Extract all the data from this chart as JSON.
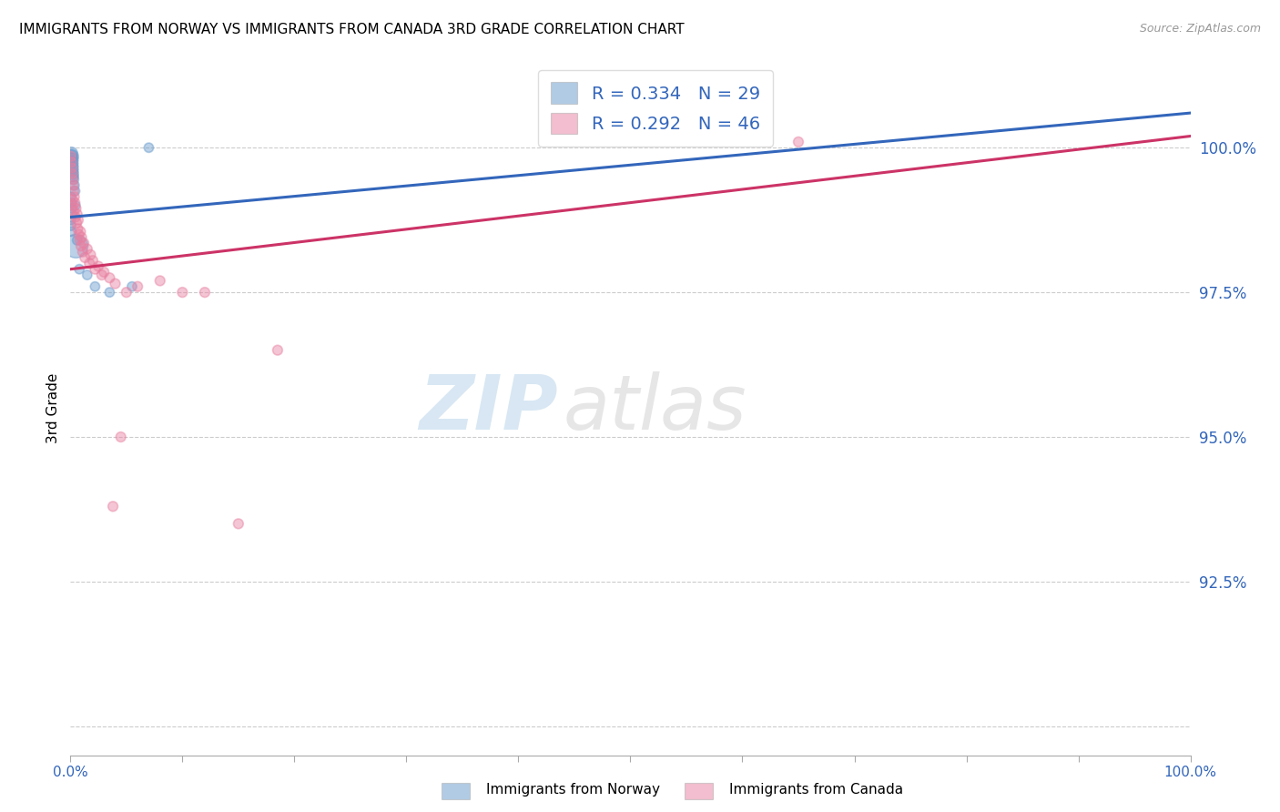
{
  "title": "IMMIGRANTS FROM NORWAY VS IMMIGRANTS FROM CANADA 3RD GRADE CORRELATION CHART",
  "source": "Source: ZipAtlas.com",
  "ylabel": "3rd Grade",
  "xlim": [
    0.0,
    100.0
  ],
  "ylim": [
    89.5,
    101.5
  ],
  "norway_color": "#6699cc",
  "canada_color": "#e87fa0",
  "norway_R": "0.334",
  "norway_N": "29",
  "canada_R": "0.292",
  "canada_N": "46",
  "norway_label": "Immigrants from Norway",
  "canada_label": "Immigrants from Canada",
  "ytick_positions": [
    90.0,
    92.5,
    95.0,
    97.5,
    100.0
  ],
  "ytick_labels": [
    "",
    "92.5%",
    "95.0%",
    "97.5%",
    "100.0%"
  ],
  "norway_x": [
    0.05,
    0.08,
    0.1,
    0.12,
    0.15,
    0.18,
    0.2,
    0.22,
    0.25,
    0.28,
    0.3,
    0.35,
    0.4,
    0.06,
    0.09,
    0.13,
    0.16,
    0.04,
    0.07,
    0.1,
    0.5,
    0.8,
    1.5,
    2.2,
    3.5,
    5.5,
    7.0,
    0.45,
    0.6
  ],
  "norway_y": [
    99.85,
    99.9,
    99.85,
    99.8,
    99.75,
    99.7,
    99.65,
    99.6,
    99.55,
    99.5,
    99.45,
    99.35,
    99.25,
    99.15,
    99.05,
    98.95,
    98.85,
    98.75,
    98.65,
    98.55,
    98.3,
    97.9,
    97.8,
    97.6,
    97.5,
    97.6,
    100.0,
    99.0,
    98.4
  ],
  "norway_size": [
    100,
    100,
    120,
    100,
    90,
    80,
    80,
    70,
    70,
    60,
    60,
    60,
    60,
    55,
    55,
    55,
    55,
    55,
    55,
    55,
    350,
    55,
    55,
    55,
    55,
    55,
    55,
    55,
    55
  ],
  "canada_x": [
    0.05,
    0.08,
    0.12,
    0.15,
    0.2,
    0.25,
    0.3,
    0.35,
    0.4,
    0.5,
    0.6,
    0.7,
    0.9,
    1.0,
    1.2,
    1.5,
    1.8,
    2.0,
    2.5,
    3.0,
    3.5,
    4.0,
    0.18,
    0.22,
    0.28,
    0.45,
    0.55,
    0.65,
    0.75,
    0.85,
    0.95,
    1.1,
    1.3,
    1.7,
    2.2,
    2.8,
    5.0,
    6.0,
    8.0,
    10.0,
    12.0,
    15.0,
    3.8,
    4.5,
    18.5,
    65.0
  ],
  "canada_y": [
    99.85,
    99.75,
    99.65,
    99.55,
    99.45,
    99.35,
    99.25,
    99.15,
    99.05,
    98.95,
    98.85,
    98.75,
    98.55,
    98.45,
    98.35,
    98.25,
    98.15,
    98.05,
    97.95,
    97.85,
    97.75,
    97.65,
    99.1,
    99.0,
    98.9,
    98.8,
    98.7,
    98.6,
    98.5,
    98.4,
    98.3,
    98.2,
    98.1,
    98.0,
    97.9,
    97.8,
    97.5,
    97.6,
    97.7,
    97.5,
    97.5,
    93.5,
    93.8,
    95.0,
    96.5,
    100.1
  ],
  "canada_size": [
    60,
    60,
    60,
    60,
    60,
    60,
    60,
    60,
    60,
    60,
    60,
    60,
    60,
    60,
    60,
    60,
    60,
    60,
    60,
    60,
    60,
    60,
    60,
    60,
    60,
    60,
    60,
    60,
    60,
    60,
    60,
    60,
    60,
    60,
    60,
    60,
    60,
    60,
    60,
    60,
    60,
    60,
    60,
    60,
    60,
    60
  ],
  "norway_line_start_x": 0.0,
  "norway_line_end_x": 100.0,
  "norway_line_start_y": 98.8,
  "norway_line_end_y": 100.6,
  "canada_line_start_x": 0.0,
  "canada_line_end_x": 100.0,
  "canada_line_start_y": 97.9,
  "canada_line_end_y": 100.2
}
